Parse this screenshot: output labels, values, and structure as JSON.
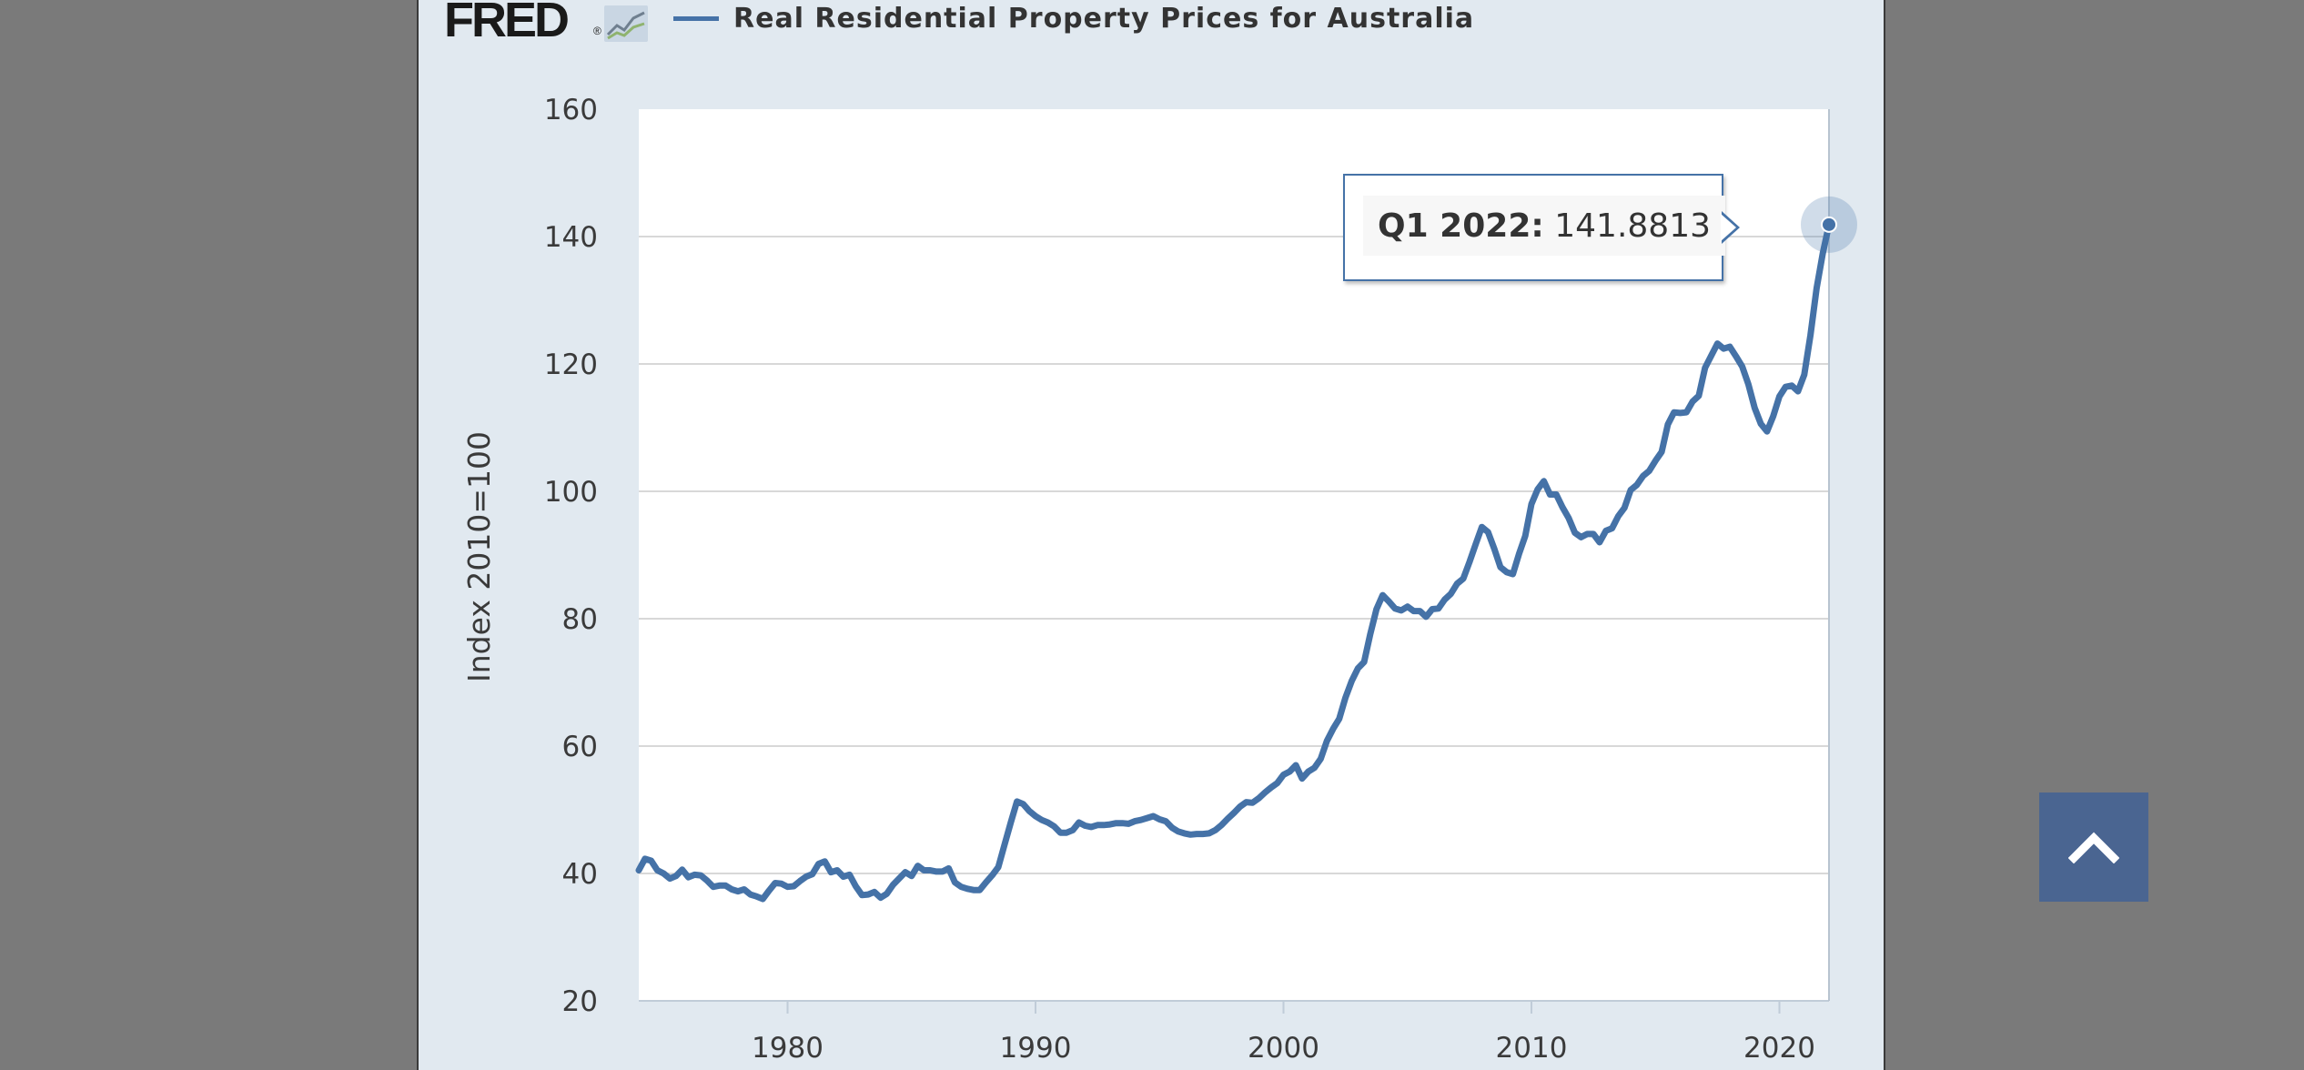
{
  "header": {
    "logo_text": "FRED",
    "logo_reg": "®",
    "logo_icon": "fred-graph-icon",
    "legend_label": "Real Residential Property Prices for Australia"
  },
  "colors": {
    "series": "#4572a7",
    "background": "#e1e9f0",
    "plot_background": "#ffffff",
    "gridline": "#d8d8d8",
    "scroll_button": "#4a6591"
  },
  "tooltip": {
    "period": "Q1 2022:",
    "value": "141.8813"
  },
  "scroll_button": {
    "icon": "chevron-up-icon"
  },
  "chart_data": {
    "type": "line",
    "title": "Real Residential Property Prices for Australia",
    "xlabel": "",
    "ylabel": "Index 2010=100",
    "xlim": [
      1974.0,
      2022.0
    ],
    "ylim": [
      20,
      160
    ],
    "yticks": [
      20,
      40,
      60,
      80,
      100,
      120,
      140,
      160
    ],
    "xticks": [
      1980,
      1990,
      2000,
      2010,
      2020
    ],
    "grid": true,
    "legend": "top-left",
    "series": [
      {
        "name": "Real Residential Property Prices for Australia",
        "x": [
          1974.0,
          1974.25,
          1974.5,
          1974.75,
          1975.0,
          1975.25,
          1975.5,
          1975.75,
          1976.0,
          1976.25,
          1976.5,
          1976.75,
          1977.0,
          1977.25,
          1977.5,
          1977.75,
          1978.0,
          1978.25,
          1978.5,
          1978.75,
          1979.0,
          1979.25,
          1979.5,
          1979.75,
          1980.0,
          1980.25,
          1980.5,
          1980.75,
          1981.0,
          1981.25,
          1981.5,
          1981.75,
          1982.0,
          1982.25,
          1982.5,
          1982.75,
          1983.0,
          1983.25,
          1983.5,
          1983.75,
          1984.0,
          1984.25,
          1984.5,
          1984.75,
          1985.0,
          1985.25,
          1985.5,
          1985.75,
          1986.0,
          1986.25,
          1986.5,
          1986.75,
          1987.0,
          1987.25,
          1987.5,
          1987.75,
          1988.0,
          1988.25,
          1988.5,
          1988.75,
          1989.0,
          1989.25,
          1989.5,
          1989.75,
          1990.0,
          1990.25,
          1990.5,
          1990.75,
          1991.0,
          1991.25,
          1991.5,
          1991.75,
          1992.0,
          1992.25,
          1992.5,
          1992.75,
          1993.0,
          1993.25,
          1993.5,
          1993.75,
          1994.0,
          1994.25,
          1994.5,
          1994.75,
          1995.0,
          1995.25,
          1995.5,
          1995.75,
          1996.0,
          1996.25,
          1996.5,
          1996.75,
          1997.0,
          1997.25,
          1997.5,
          1997.75,
          1998.0,
          1998.25,
          1998.5,
          1998.75,
          1999.0,
          1999.25,
          1999.5,
          1999.75,
          2000.0,
          2000.25,
          2000.5,
          2000.75,
          2001.0,
          2001.25,
          2001.5,
          2001.75,
          2002.0,
          2002.25,
          2002.5,
          2002.75,
          2003.0,
          2003.25,
          2003.5,
          2003.75,
          2004.0,
          2004.25,
          2004.5,
          2004.75,
          2005.0,
          2005.25,
          2005.5,
          2005.75,
          2006.0,
          2006.25,
          2006.5,
          2006.75,
          2007.0,
          2007.25,
          2007.5,
          2007.75,
          2008.0,
          2008.25,
          2008.5,
          2008.75,
          2009.0,
          2009.25,
          2009.5,
          2009.75,
          2010.0,
          2010.25,
          2010.5,
          2010.75,
          2011.0,
          2011.25,
          2011.5,
          2011.75,
          2012.0,
          2012.25,
          2012.5,
          2012.75,
          2013.0,
          2013.25,
          2013.5,
          2013.75,
          2014.0,
          2014.25,
          2014.5,
          2014.75,
          2015.0,
          2015.25,
          2015.5,
          2015.75,
          2016.0,
          2016.25,
          2016.5,
          2016.75,
          2017.0,
          2017.25,
          2017.5,
          2017.75,
          2018.0,
          2018.25,
          2018.5,
          2018.75,
          2019.0,
          2019.25,
          2019.5,
          2019.75,
          2020.0,
          2020.25,
          2020.5,
          2020.75,
          2021.0,
          2021.25,
          2021.5,
          2021.75,
          2022.0
        ],
        "values": [
          40.5,
          42.3,
          42.0,
          40.5,
          40.0,
          39.2,
          39.6,
          40.6,
          39.4,
          39.8,
          39.7,
          38.9,
          37.9,
          38.1,
          38.1,
          37.5,
          37.2,
          37.5,
          36.7,
          36.4,
          36.0,
          37.3,
          38.5,
          38.4,
          37.9,
          38.0,
          38.8,
          39.5,
          39.9,
          41.5,
          41.9,
          40.2,
          40.5,
          39.5,
          39.8,
          38.0,
          36.6,
          36.7,
          37.1,
          36.2,
          36.8,
          38.2,
          39.2,
          40.2,
          39.6,
          41.2,
          40.5,
          40.5,
          40.3,
          40.3,
          40.8,
          38.6,
          37.9,
          37.6,
          37.4,
          37.4,
          38.6,
          39.7,
          41.0,
          44.5,
          48.0,
          51.3,
          50.9,
          49.8,
          49.0,
          48.4,
          48.0,
          47.4,
          46.4,
          46.4,
          46.8,
          48.0,
          47.5,
          47.3,
          47.6,
          47.6,
          47.7,
          47.9,
          47.9,
          47.8,
          48.2,
          48.4,
          48.7,
          49.0,
          48.5,
          48.2,
          47.2,
          46.6,
          46.3,
          46.1,
          46.2,
          46.2,
          46.3,
          46.8,
          47.6,
          48.6,
          49.5,
          50.5,
          51.2,
          51.1,
          51.8,
          52.7,
          53.5,
          54.2,
          55.5,
          56.0,
          57.0,
          54.9,
          56.0,
          56.6,
          58.0,
          60.8,
          62.7,
          64.3,
          67.6,
          70.2,
          72.2,
          73.2,
          77.6,
          81.5,
          83.7,
          82.7,
          81.6,
          81.3,
          81.9,
          81.2,
          81.2,
          80.3,
          81.5,
          81.6,
          83.0,
          83.9,
          85.5,
          86.3,
          88.9,
          91.7,
          94.4,
          93.6,
          91.0,
          88.1,
          87.3,
          87.0,
          90.2,
          93.0,
          98.0,
          100.3,
          101.6,
          99.5,
          99.5,
          97.5,
          95.8,
          93.5,
          92.8,
          93.3,
          93.3,
          92.0,
          93.8,
          94.2,
          96.1,
          97.4,
          100.2,
          101.0,
          102.4,
          103.2,
          104.8,
          106.2,
          110.5,
          112.4,
          112.3,
          112.4,
          114.1,
          115.0,
          119.4,
          121.3,
          123.2,
          122.4,
          122.7,
          121.2,
          119.6,
          116.8,
          113.1,
          110.6,
          109.4,
          111.8,
          114.9,
          116.4,
          116.6,
          115.7,
          118.3,
          124.5,
          131.9,
          137.4,
          141.8813
        ]
      }
    ]
  }
}
